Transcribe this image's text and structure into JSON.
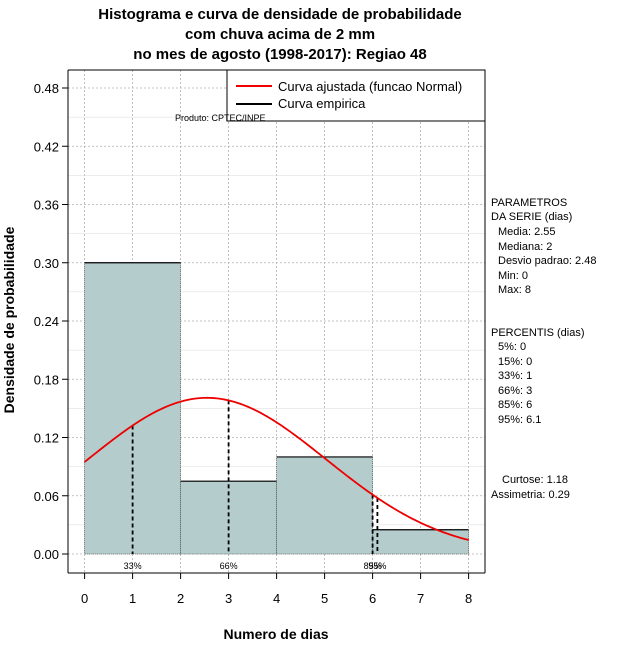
{
  "title": {
    "line1": "Histograma e curva de densidade de probabilidade",
    "line2": "com chuva acima de 2 mm",
    "line3": "no mes de agosto (1998-2017): Regiao 48"
  },
  "product_label": "Produto: CPTEC/INPE",
  "params": {
    "heading1": "PARAMETROS",
    "heading2": "DA SERIE (dias)",
    "lines": [
      "Media: 2.55",
      "Mediana: 2",
      "Desvio padrao: 2.48",
      "Min: 0",
      "Max: 8"
    ]
  },
  "percentis": {
    "heading": "PERCENTIS (dias)",
    "lines": [
      "5%: 0",
      "15%: 0",
      "33%: 1",
      "66%: 3",
      "85%: 6",
      "95%: 6.1"
    ]
  },
  "shape": {
    "lines": [
      "Curtose: 1.18",
      "Assimetria: 0.29"
    ]
  },
  "colors": {
    "bar_fill": "#b4cccc",
    "normal_curve": "#ee0000",
    "empirical": "#000000",
    "grid": "#b0b0b0"
  },
  "chart_data": {
    "type": "bar",
    "title": "Histograma e curva de densidade de probabilidade com chuva acima de 2 mm no mes de agosto (1998-2017): Regiao 48",
    "xlabel": "Numero de dias",
    "ylabel": "Densidade de probabilidade",
    "xlim": [
      0,
      8
    ],
    "ylim": [
      0,
      0.48
    ],
    "x_ticks": [
      0,
      1,
      2,
      3,
      4,
      5,
      6,
      7,
      8
    ],
    "y_ticks": [
      0.0,
      0.06,
      0.12,
      0.18,
      0.24,
      0.3,
      0.36,
      0.42,
      0.48
    ],
    "y_tick_labels": [
      "0.00",
      "0.06",
      "0.12",
      "0.18",
      "0.24",
      "0.30",
      "0.36",
      "0.42",
      "0.48"
    ],
    "grid": true,
    "bins": [
      {
        "from": 0,
        "to": 2,
        "value": 0.3
      },
      {
        "from": 2,
        "to": 4,
        "value": 0.075
      },
      {
        "from": 4,
        "to": 6,
        "value": 0.1
      },
      {
        "from": 6,
        "to": 8,
        "value": 0.025
      }
    ],
    "normal_curve": {
      "name": "Curva ajustada (funcao Normal)",
      "mean": 2.55,
      "sd": 2.48
    },
    "empirical_curve": {
      "name": "Curva empirica"
    },
    "legend_position": "top-right",
    "percentile_lines": [
      {
        "label": "33%",
        "x": 1
      },
      {
        "label": "66%",
        "x": 3
      },
      {
        "label": "85%",
        "x": 6
      },
      {
        "label": "95%",
        "x": 6.1
      }
    ]
  }
}
